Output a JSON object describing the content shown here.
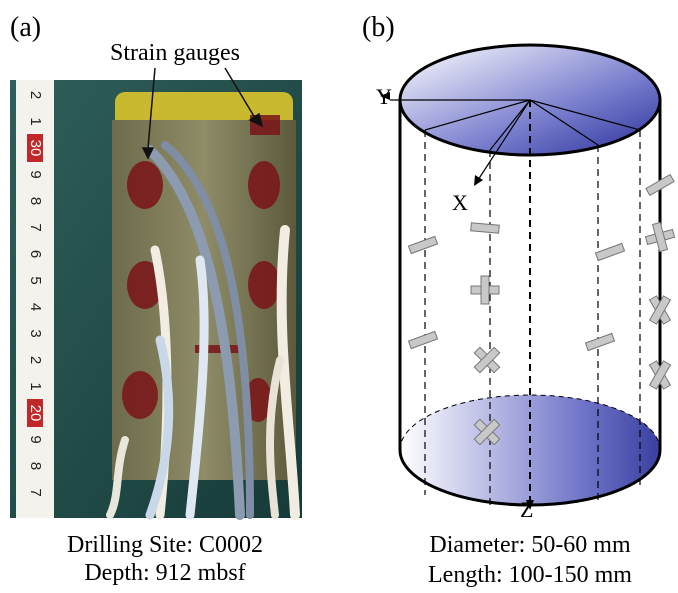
{
  "panel_a": {
    "label": "(a)",
    "annotation": "Strain gauges",
    "ruler_labels": [
      "2",
      "1",
      "30",
      "9",
      "8",
      "7",
      "6",
      "5",
      "4",
      "3",
      "2",
      "1",
      "20",
      "9",
      "8",
      "7"
    ],
    "caption": [
      "Drilling Site: C0002",
      "Depth: 912 mbsf"
    ]
  },
  "panel_b": {
    "label": "(b)",
    "axes": {
      "y": "Y",
      "x": "X",
      "z": "Z"
    },
    "caption": [
      "Diameter: 50-60 mm",
      "Length: 100-150 mm"
    ]
  }
}
